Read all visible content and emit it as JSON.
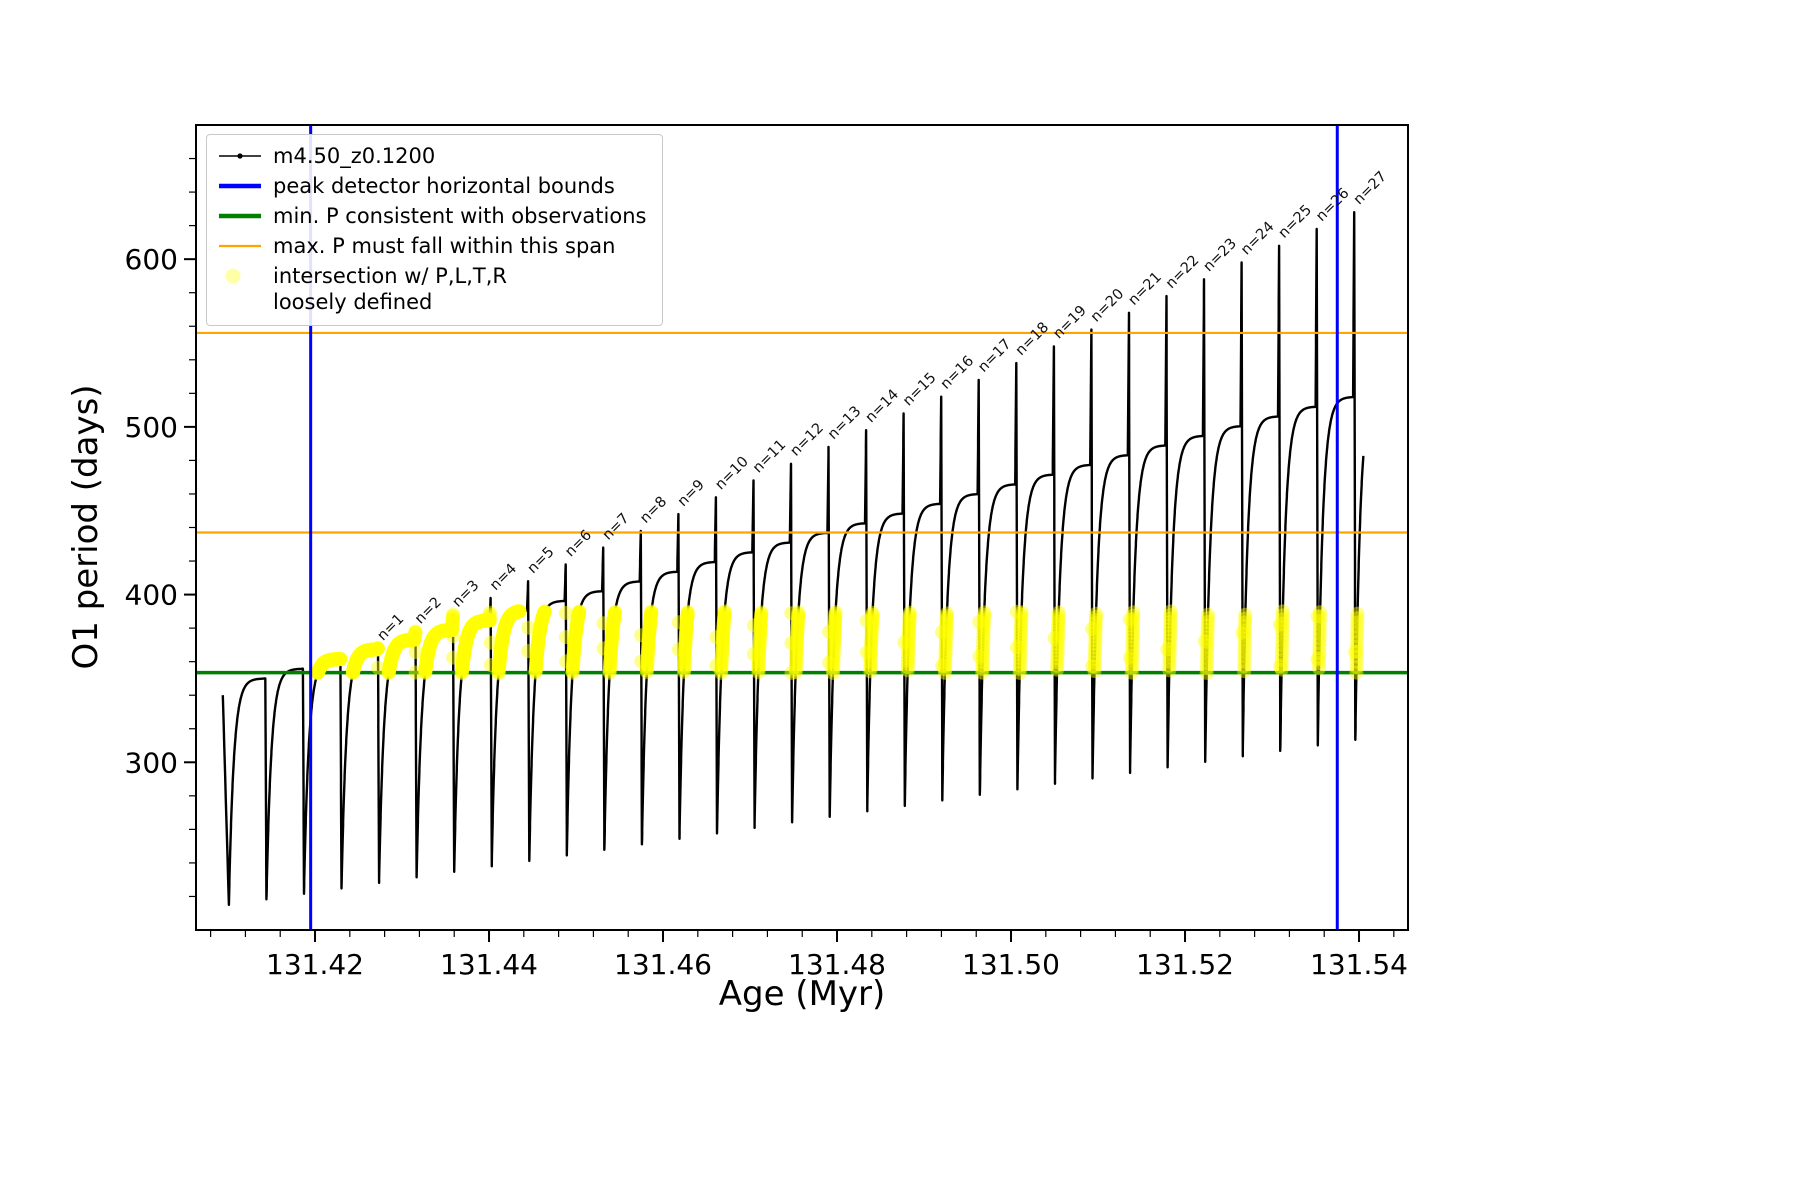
{
  "chart_data": {
    "type": "line",
    "title": "",
    "xlabel": "Age (Myr)",
    "ylabel": "O1 period (days)",
    "xlim": [
      131.40632,
      131.54563
    ],
    "ylim": [
      200,
      680
    ],
    "xticks": [
      131.42,
      131.44,
      131.46,
      131.48,
      131.5,
      131.52,
      131.54
    ],
    "xtick_labels": [
      "131.42",
      "131.44",
      "131.46",
      "131.48",
      "131.50",
      "131.52",
      "131.54"
    ],
    "yticks": [
      300,
      400,
      500,
      600
    ],
    "ytick_labels": [
      "300",
      "400",
      "500",
      "600"
    ],
    "grid": false,
    "legend_position": "upper left",
    "series_name": "m4.50_z0.1200",
    "colors": {
      "series": "#000000",
      "peak_bounds": "#0000ff",
      "min_p": "#008000",
      "max_p_span": "#ffa500",
      "intersection": "#ffff00"
    },
    "vlines_blue": [
      131.4195,
      131.5375
    ],
    "hlines_orange": [
      556,
      437
    ],
    "hline_green": 353.5,
    "band": {
      "x_min": 131.4195,
      "y_min": 353,
      "y_max": 390
    },
    "model": {
      "period": 0.004316,
      "tau": 0.13,
      "spike_start": 0.94,
      "spike_peak_t": 0.97,
      "x_data_min": 131.4094,
      "x_data_max": 131.5405,
      "pre_start_y": 340
    },
    "cycles": [
      {
        "x0": 131.4101,
        "min": 215.0,
        "plateau": 350.0,
        "peak": 350.0,
        "label": null
      },
      {
        "x0": 131.41442,
        "min": 218.3,
        "plateau": 355.8,
        "peak": 355.8,
        "label": null
      },
      {
        "x0": 131.41873,
        "min": 221.6,
        "plateau": 361.6,
        "peak": 361.6,
        "label": null
      },
      {
        "x0": 131.42305,
        "min": 224.8,
        "plateau": 367.4,
        "peak": 368.0,
        "label": "n=1"
      },
      {
        "x0": 131.42736,
        "min": 228.1,
        "plateau": 373.2,
        "peak": 378.0,
        "label": "n=2"
      },
      {
        "x0": 131.43168,
        "min": 231.4,
        "plateau": 379.0,
        "peak": 388.0,
        "label": "n=3"
      },
      {
        "x0": 131.436,
        "min": 234.7,
        "plateau": 384.7,
        "peak": 398.0,
        "label": "n=4"
      },
      {
        "x0": 131.44031,
        "min": 238.0,
        "plateau": 390.5,
        "peak": 408.0,
        "label": "n=5"
      },
      {
        "x0": 131.44463,
        "min": 241.2,
        "plateau": 396.3,
        "peak": 418.0,
        "label": "n=6"
      },
      {
        "x0": 131.44894,
        "min": 244.5,
        "plateau": 402.1,
        "peak": 428.0,
        "label": "n=7"
      },
      {
        "x0": 131.45326,
        "min": 247.8,
        "plateau": 407.9,
        "peak": 438.0,
        "label": "n=8"
      },
      {
        "x0": 131.45758,
        "min": 251.1,
        "plateau": 413.7,
        "peak": 448.0,
        "label": "n=9"
      },
      {
        "x0": 131.46189,
        "min": 254.4,
        "plateau": 419.5,
        "peak": 458.0,
        "label": "n=10"
      },
      {
        "x0": 131.46621,
        "min": 257.6,
        "plateau": 425.3,
        "peak": 468.0,
        "label": "n=11"
      },
      {
        "x0": 131.47052,
        "min": 260.9,
        "plateau": 431.1,
        "peak": 478.0,
        "label": "n=12"
      },
      {
        "x0": 131.47484,
        "min": 264.2,
        "plateau": 436.9,
        "peak": 488.0,
        "label": "n=13"
      },
      {
        "x0": 131.47916,
        "min": 267.5,
        "plateau": 442.6,
        "peak": 498.0,
        "label": "n=14"
      },
      {
        "x0": 131.48347,
        "min": 270.8,
        "plateau": 448.4,
        "peak": 508.0,
        "label": "n=15"
      },
      {
        "x0": 131.48779,
        "min": 274.0,
        "plateau": 454.2,
        "peak": 518.0,
        "label": "n=16"
      },
      {
        "x0": 131.4921,
        "min": 277.3,
        "plateau": 460.0,
        "peak": 528.0,
        "label": "n=17"
      },
      {
        "x0": 131.49642,
        "min": 280.6,
        "plateau": 465.8,
        "peak": 538.0,
        "label": "n=18"
      },
      {
        "x0": 131.50074,
        "min": 283.9,
        "plateau": 471.6,
        "peak": 548.0,
        "label": "n=19"
      },
      {
        "x0": 131.50505,
        "min": 287.2,
        "plateau": 477.4,
        "peak": 558.0,
        "label": "n=20"
      },
      {
        "x0": 131.50937,
        "min": 290.4,
        "plateau": 483.2,
        "peak": 568.0,
        "label": "n=21"
      },
      {
        "x0": 131.51368,
        "min": 293.7,
        "plateau": 489.0,
        "peak": 578.0,
        "label": "n=22"
      },
      {
        "x0": 131.518,
        "min": 297.0,
        "plateau": 494.7,
        "peak": 588.0,
        "label": "n=23"
      },
      {
        "x0": 131.52232,
        "min": 300.3,
        "plateau": 500.5,
        "peak": 598.0,
        "label": "n=24"
      },
      {
        "x0": 131.52663,
        "min": 303.6,
        "plateau": 506.3,
        "peak": 608.0,
        "label": "n=25"
      },
      {
        "x0": 131.53095,
        "min": 306.8,
        "plateau": 512.1,
        "peak": 618.0,
        "label": "n=26"
      },
      {
        "x0": 131.53526,
        "min": 310.1,
        "plateau": 517.9,
        "peak": 628.0,
        "label": "n=27"
      },
      {
        "x0": 131.53958,
        "min": 313.4,
        "plateau": 523.7,
        "peak": 523.7,
        "label": null
      }
    ],
    "legend": [
      {
        "icon": "series-line-icon",
        "sample": "line-dot",
        "color": "#000000",
        "label": "m4.50_z0.1200"
      },
      {
        "icon": "blue-line-icon",
        "sample": "thick-line",
        "color": "#0000ff",
        "label": "peak detector horizontal bounds"
      },
      {
        "icon": "green-line-icon",
        "sample": "thick-line",
        "color": "#008000",
        "label": "min. P consistent with observations"
      },
      {
        "icon": "orange-line-icon",
        "sample": "line",
        "color": "#ffa500",
        "label": "max. P must fall within this span"
      },
      {
        "icon": "yellow-dot-icon",
        "sample": "dot",
        "color": "#ffff00",
        "label": "intersection w/ P,L,T,R",
        "label2": "loosely defined"
      }
    ]
  }
}
